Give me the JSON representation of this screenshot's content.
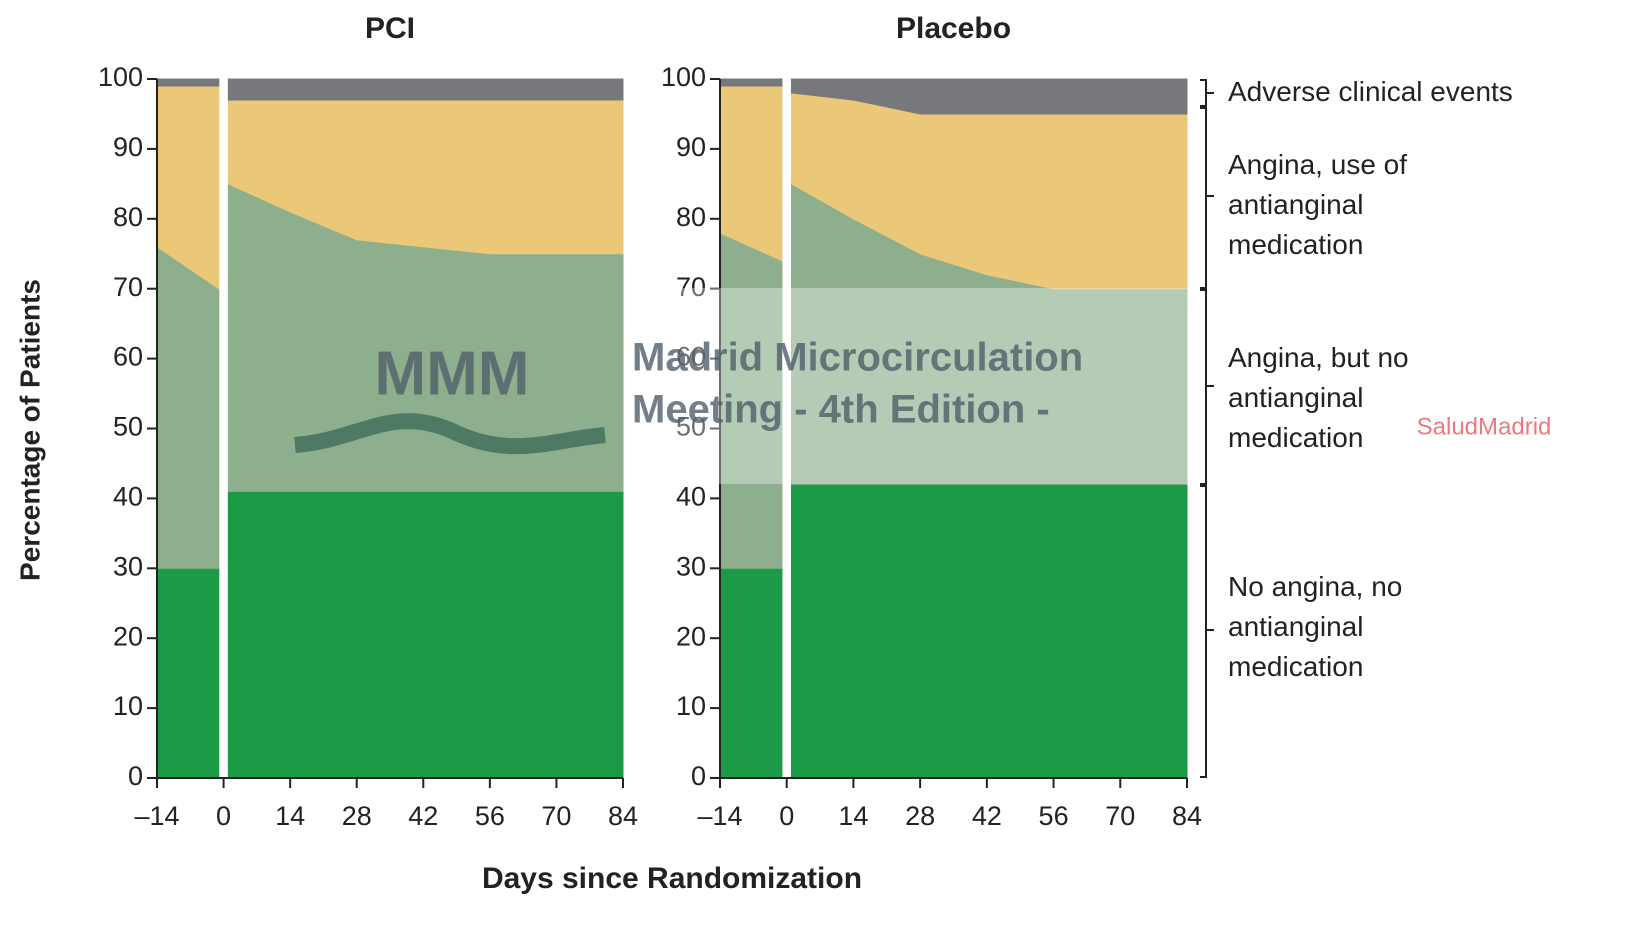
{
  "axis_titles": {
    "y": "Percentage of Patients",
    "x": "Days since Randomization"
  },
  "watermarks": [
    "MMM",
    "Madrid Microcirculation",
    "Meeting - 4th Edition -",
    "SaludMadrid"
  ],
  "chart_data": [
    {
      "type": "stacked_area",
      "title": "PCI",
      "x": [
        -14,
        -1,
        0,
        1,
        14,
        28,
        42,
        56,
        70,
        84
      ],
      "series": [
        {
          "name": "No angina, no antianginal medication",
          "color": "#1d9a47",
          "values": [
            30,
            30,
            null,
            41,
            41,
            41,
            41,
            41,
            41,
            41
          ]
        },
        {
          "name": "Angina, but no antianginal medication",
          "color": "#8daf8e",
          "values": [
            46,
            40,
            null,
            44,
            40,
            36,
            35,
            34,
            34,
            34
          ]
        },
        {
          "name": "Angina, use of antianginal medication",
          "color": "#ebc877",
          "values": [
            23,
            29,
            null,
            12,
            16,
            20,
            21,
            22,
            22,
            22
          ]
        },
        {
          "name": "Adverse clinical events",
          "color": "#76787c",
          "values": [
            1,
            1,
            null,
            3,
            3,
            3,
            3,
            3,
            3,
            3
          ]
        }
      ],
      "xlim": [
        -14,
        84
      ],
      "ylim": [
        0,
        100
      ],
      "xticks": [
        {
          "value": -14,
          "label": "–14"
        },
        0,
        14,
        28,
        42,
        56,
        70,
        84
      ],
      "yticks": [
        0,
        10,
        20,
        30,
        40,
        50,
        60,
        70,
        80,
        90,
        100
      ]
    },
    {
      "type": "stacked_area",
      "title": "Placebo",
      "x": [
        -14,
        -1,
        0,
        1,
        14,
        28,
        42,
        56,
        70,
        84
      ],
      "series": [
        {
          "name": "No angina, no antianginal medication",
          "color": "#1d9a47",
          "values": [
            30,
            30,
            null,
            42,
            42,
            42,
            42,
            42,
            42,
            42
          ]
        },
        {
          "name": "Angina, but no antianginal medication",
          "color": "#8daf8e",
          "values": [
            48,
            44,
            null,
            43,
            38,
            33,
            30,
            28,
            28,
            28
          ]
        },
        {
          "name": "Angina, use of antianginal medication",
          "color": "#ebc877",
          "values": [
            21,
            25,
            null,
            13,
            17,
            20,
            23,
            25,
            25,
            25
          ]
        },
        {
          "name": "Adverse clinical events",
          "color": "#76787c",
          "values": [
            1,
            1,
            null,
            2,
            3,
            5,
            5,
            5,
            5,
            5
          ]
        }
      ],
      "xlim": [
        -14,
        84
      ],
      "ylim": [
        0,
        100
      ],
      "xticks": [
        {
          "value": -14,
          "label": "–14"
        },
        0,
        14,
        28,
        42,
        56,
        70,
        84
      ],
      "yticks": [
        0,
        10,
        20,
        30,
        40,
        50,
        60,
        70,
        80,
        90,
        100
      ]
    }
  ]
}
